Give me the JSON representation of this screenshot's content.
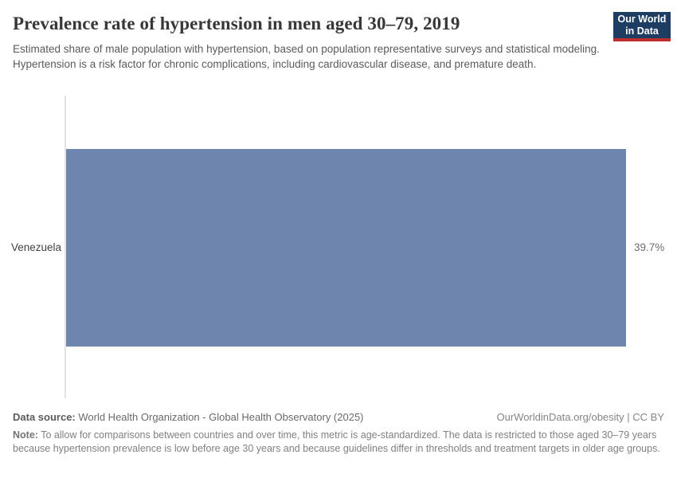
{
  "header": {
    "title": "Prevalence rate of hypertension in men aged 30–79, 2019",
    "subtitle": "Estimated share of male population with hypertension, based on population representative surveys and statistical modeling. Hypertension is a risk factor for chronic complications, including cardiovascular disease, and premature death.",
    "logo": {
      "line1": "Our World",
      "line2": "in Data",
      "bg_color": "#1d3d63",
      "accent_color": "#bf2e2e"
    }
  },
  "chart_data": {
    "type": "bar",
    "orientation": "horizontal",
    "title": "Prevalence rate of hypertension in men aged 30–79, 2019",
    "categories": [
      "Venezuela"
    ],
    "values": [
      39.7
    ],
    "value_labels": [
      "39.7%"
    ],
    "xlabel": "",
    "ylabel": "",
    "xlim": [
      0,
      39.7
    ],
    "grid": false,
    "legend": false,
    "bar_color": "#6e86ad",
    "axis_line_color": "#e3e3e3"
  },
  "footer": {
    "data_source_label": "Data source:",
    "data_source_value": " World Health Organization - Global Health Observatory (2025)",
    "attribution": "OurWorldinData.org/obesity | CC BY",
    "note_label": "Note:",
    "note_value": " To allow for comparisons between countries and over time, this metric is age-standardized. The data is restricted to those aged 30–79 years because hypertension prevalence is low before age 30 years and because guidelines differ in thresholds and treatment targets in older age groups."
  }
}
